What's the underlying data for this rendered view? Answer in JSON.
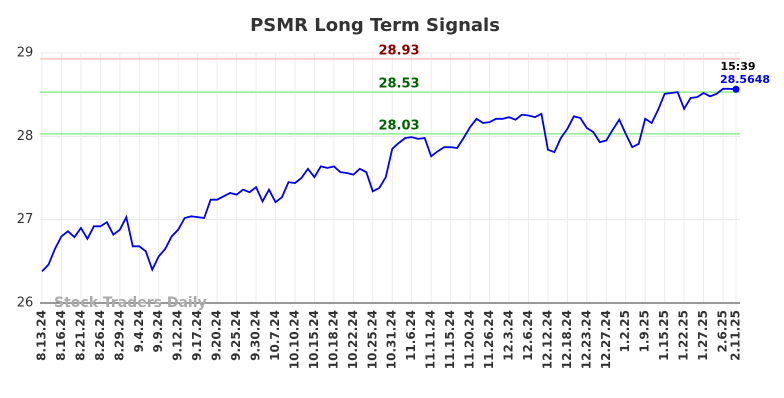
{
  "chart_data": {
    "type": "line",
    "title": "PSMR Long Term Signals",
    "categories": [
      "8.13.24",
      null,
      null,
      "8.16.24",
      null,
      null,
      "8.21.24",
      null,
      null,
      "8.26.24",
      null,
      null,
      "8.29.24",
      null,
      null,
      "9.4.24",
      null,
      null,
      "9.9.24",
      null,
      null,
      "9.12.24",
      null,
      null,
      "9.17.24",
      null,
      null,
      "9.20.24",
      null,
      null,
      "9.25.24",
      null,
      null,
      "9.30.24",
      null,
      null,
      "10.7.24",
      null,
      null,
      "10.10.24",
      null,
      null,
      "10.15.24",
      null,
      null,
      "10.18.24",
      null,
      null,
      "10.22.24",
      null,
      null,
      "10.25.24",
      null,
      null,
      "10.31.24",
      null,
      null,
      "11.6.24",
      null,
      null,
      "11.11.24",
      null,
      null,
      "11.15.24",
      null,
      null,
      "11.20.24",
      null,
      null,
      "11.26.24",
      null,
      null,
      "12.3.24",
      null,
      null,
      "12.6.24",
      null,
      null,
      "12.12.24",
      null,
      null,
      "12.18.24",
      null,
      null,
      "12.23.24",
      null,
      null,
      "12.27.24",
      null,
      null,
      "1.2.25",
      null,
      null,
      "1.9.25",
      null,
      null,
      "1.15.25",
      null,
      null,
      "1.22.25",
      null,
      null,
      "1.27.25",
      null,
      null,
      "2.6.25",
      null,
      "2.11.25"
    ],
    "values": [
      26.38,
      26.46,
      26.65,
      26.8,
      26.86,
      26.79,
      26.9,
      26.77,
      26.92,
      26.92,
      26.97,
      26.82,
      26.88,
      27.03,
      26.68,
      26.68,
      26.62,
      26.4,
      26.56,
      26.65,
      26.8,
      26.88,
      27.02,
      27.04,
      27.03,
      27.02,
      27.24,
      27.24,
      27.28,
      27.32,
      27.3,
      27.36,
      27.33,
      27.39,
      27.22,
      27.36,
      27.21,
      27.27,
      27.45,
      27.44,
      27.5,
      27.61,
      27.51,
      27.64,
      27.62,
      27.64,
      27.57,
      27.56,
      27.54,
      27.61,
      27.57,
      27.34,
      27.38,
      27.51,
      27.85,
      27.92,
      27.98,
      27.99,
      27.97,
      27.98,
      27.76,
      27.82,
      27.87,
      27.87,
      27.86,
      27.98,
      28.11,
      28.21,
      28.16,
      28.17,
      28.21,
      28.21,
      28.23,
      28.2,
      28.26,
      28.25,
      28.23,
      28.27,
      27.84,
      27.81,
      27.98,
      28.09,
      28.24,
      28.22,
      28.1,
      28.05,
      27.93,
      27.95,
      28.08,
      28.2,
      28.03,
      27.87,
      27.91,
      28.21,
      28.16,
      28.32,
      28.51,
      28.52,
      28.53,
      28.33,
      28.46,
      28.47,
      28.52,
      28.48,
      28.51,
      28.57,
      28.57,
      28.5648
    ],
    "color": "#0000ee",
    "ylim": [
      26,
      29
    ],
    "yticks": [
      26,
      27,
      28,
      29
    ],
    "grid": true,
    "hlines": [
      {
        "value": 28.93,
        "color": "#ffc0c0",
        "label_color": "#8b0000"
      },
      {
        "value": 28.53,
        "color": "#90ee90",
        "label_color": "#006400"
      },
      {
        "value": 28.03,
        "color": "#90ee90",
        "label_color": "#006400"
      }
    ],
    "last_time": "15:39",
    "watermark": "Stock Traders Daily"
  }
}
